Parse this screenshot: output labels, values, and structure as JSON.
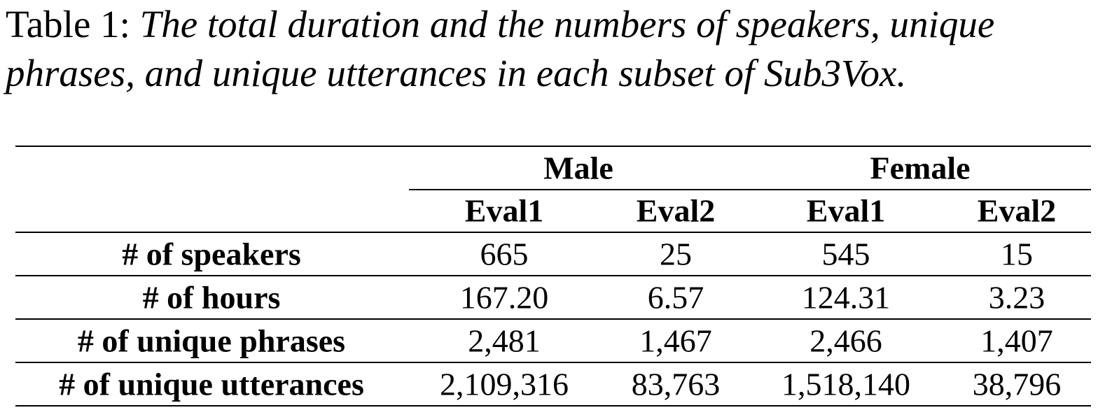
{
  "caption": {
    "label": "Table 1:",
    "text": "The total duration and the numbers of speakers, unique phrases, and unique utterances in each subset of Sub3Vox."
  },
  "table": {
    "groups": [
      "Male",
      "Female"
    ],
    "subheaders": [
      "Eval1",
      "Eval2",
      "Eval1",
      "Eval2"
    ],
    "rows": [
      [
        "# of speakers",
        "665",
        "25",
        "545",
        "15"
      ],
      [
        "# of hours",
        "167.20",
        "6.57",
        "124.31",
        "3.23"
      ],
      [
        "# of unique phrases",
        "2,481",
        "1,467",
        "2,466",
        "1,407"
      ],
      [
        "# of unique utterances",
        "2,109,316",
        "83,763",
        "1,518,140",
        "38,796"
      ]
    ]
  }
}
